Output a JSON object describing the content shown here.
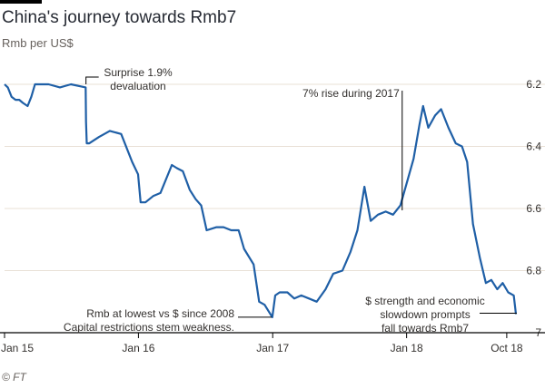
{
  "header": {
    "title": "China's journey towards Rmb7",
    "subtitle": "Rmb per US$"
  },
  "footer": {
    "source": "© FT"
  },
  "colors": {
    "line": "#1f5fa6",
    "grid": "#e9e0d6",
    "axis": "#000000",
    "text": "#33302e",
    "muted": "#66605c"
  },
  "chart_data": {
    "type": "line",
    "title": "China's journey towards Rmb7",
    "ylabel": "Rmb per US$",
    "y_inverted": true,
    "ylim": [
      6.2,
      7.0
    ],
    "yticks": [
      6.2,
      6.4,
      6.6,
      6.8,
      7
    ],
    "ytick_labels": [
      "6.2",
      "6.4",
      "6.6",
      "6.8",
      "7"
    ],
    "xlim": [
      "2015-01-01",
      "2018-10-31"
    ],
    "xticks": [
      {
        "date": "2015-01-01",
        "label": "Jan 15"
      },
      {
        "date": "2016-01-01",
        "label": "Jan 16"
      },
      {
        "date": "2017-01-01",
        "label": "Jan 17"
      },
      {
        "date": "2018-01-01",
        "label": "Jan 18"
      },
      {
        "date": "2018-10-01",
        "label": "Oct 18"
      }
    ],
    "grid": true,
    "series": [
      {
        "points": [
          [
            "2015-01-01",
            6.2
          ],
          [
            "2015-01-10",
            6.21
          ],
          [
            "2015-01-20",
            6.24
          ],
          [
            "2015-01-31",
            6.25
          ],
          [
            "2015-02-10",
            6.25
          ],
          [
            "2015-02-20",
            6.26
          ],
          [
            "2015-03-05",
            6.27
          ],
          [
            "2015-03-15",
            6.24
          ],
          [
            "2015-03-25",
            6.2
          ],
          [
            "2015-04-10",
            6.2
          ],
          [
            "2015-05-01",
            6.2
          ],
          [
            "2015-06-01",
            6.21
          ],
          [
            "2015-07-01",
            6.2
          ],
          [
            "2015-08-10",
            6.21
          ],
          [
            "2015-08-11",
            6.32
          ],
          [
            "2015-08-13",
            6.39
          ],
          [
            "2015-08-20",
            6.39
          ],
          [
            "2015-09-15",
            6.37
          ],
          [
            "2015-10-15",
            6.35
          ],
          [
            "2015-11-15",
            6.36
          ],
          [
            "2015-12-15",
            6.45
          ],
          [
            "2015-12-31",
            6.49
          ],
          [
            "2016-01-07",
            6.58
          ],
          [
            "2016-01-20",
            6.58
          ],
          [
            "2016-02-10",
            6.56
          ],
          [
            "2016-03-01",
            6.55
          ],
          [
            "2016-04-01",
            6.46
          ],
          [
            "2016-04-15",
            6.47
          ],
          [
            "2016-05-01",
            6.48
          ],
          [
            "2016-05-20",
            6.54
          ],
          [
            "2016-06-05",
            6.57
          ],
          [
            "2016-06-20",
            6.59
          ],
          [
            "2016-07-05",
            6.67
          ],
          [
            "2016-08-01",
            6.66
          ],
          [
            "2016-08-20",
            6.66
          ],
          [
            "2016-09-10",
            6.67
          ],
          [
            "2016-09-30",
            6.67
          ],
          [
            "2016-10-15",
            6.73
          ],
          [
            "2016-11-10",
            6.78
          ],
          [
            "2016-11-25",
            6.9
          ],
          [
            "2016-12-10",
            6.91
          ],
          [
            "2016-12-31",
            6.95
          ],
          [
            "2017-01-08",
            6.88
          ],
          [
            "2017-01-20",
            6.87
          ],
          [
            "2017-02-10",
            6.87
          ],
          [
            "2017-03-01",
            6.89
          ],
          [
            "2017-03-20",
            6.88
          ],
          [
            "2017-04-10",
            6.89
          ],
          [
            "2017-05-01",
            6.9
          ],
          [
            "2017-05-25",
            6.86
          ],
          [
            "2017-06-15",
            6.81
          ],
          [
            "2017-07-10",
            6.8
          ],
          [
            "2017-08-01",
            6.74
          ],
          [
            "2017-08-20",
            6.67
          ],
          [
            "2017-09-08",
            6.53
          ],
          [
            "2017-09-25",
            6.64
          ],
          [
            "2017-10-15",
            6.62
          ],
          [
            "2017-11-05",
            6.61
          ],
          [
            "2017-11-25",
            6.62
          ],
          [
            "2017-12-15",
            6.59
          ],
          [
            "2018-01-01",
            6.52
          ],
          [
            "2018-01-20",
            6.44
          ],
          [
            "2018-02-05",
            6.33
          ],
          [
            "2018-02-15",
            6.27
          ],
          [
            "2018-03-01",
            6.34
          ],
          [
            "2018-03-20",
            6.3
          ],
          [
            "2018-04-05",
            6.28
          ],
          [
            "2018-04-25",
            6.34
          ],
          [
            "2018-05-15",
            6.39
          ],
          [
            "2018-06-01",
            6.4
          ],
          [
            "2018-06-15",
            6.45
          ],
          [
            "2018-07-01",
            6.65
          ],
          [
            "2018-07-20",
            6.76
          ],
          [
            "2018-08-05",
            6.84
          ],
          [
            "2018-08-20",
            6.83
          ],
          [
            "2018-09-05",
            6.86
          ],
          [
            "2018-09-20",
            6.84
          ],
          [
            "2018-10-05",
            6.87
          ],
          [
            "2018-10-20",
            6.88
          ],
          [
            "2018-10-26",
            6.94
          ]
        ]
      }
    ],
    "annotations": [
      {
        "text": "Surprise 1.9%\ndevaluation",
        "date": "2015-08-11",
        "value": 6.2
      },
      {
        "text": "7% rise during 2017",
        "date": "2017-12-20",
        "value": 6.2
      },
      {
        "text": "Rmb at lowest vs $ since 2008\nCapital restrictions stem weakness.",
        "date": "2017-01-03",
        "value": 6.95
      },
      {
        "text": "$ strength and economic\nslowdown prompts\nfall towards Rmb7",
        "date": "2018-10-26",
        "value": 6.94
      }
    ]
  }
}
